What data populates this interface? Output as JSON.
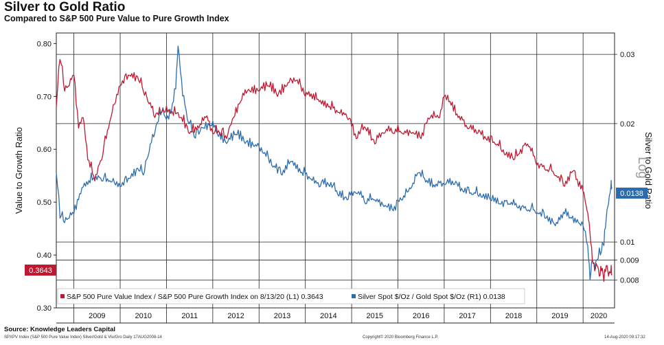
{
  "header": {
    "title": "Silver to Gold Ratio",
    "subtitle": "Compared to S&P 500 Pure Value to Pure Growth Index"
  },
  "footer": {
    "source": "Source: Knowledge Leaders Capital",
    "ticker_info": "SPXPV Index (S&P 500 Pure Value Index) Silver/Gold & Vlu/Gro Daily 17AUG2008-14",
    "copyright": "Copyright© 2020 Bloomberg Finance L.P.",
    "timestamp": "14-Aug-2020 09:17:32"
  },
  "colors": {
    "value_series": "#c0182f",
    "silver_series": "#2b6cae",
    "grid": "#222222"
  },
  "chart_data": {
    "type": "line",
    "title": "Silver to Gold Ratio",
    "subtitle": "Compared to S&P 500 Pure Value to Pure Growth Index",
    "x_years": [
      "2009",
      "2010",
      "2011",
      "2012",
      "2013",
      "2014",
      "2015",
      "2016",
      "2017",
      "2018",
      "2019",
      "2020"
    ],
    "left_axis": {
      "label": "Value to Growth Ratio",
      "ylim": [
        0.3,
        0.82
      ],
      "ticks": [
        "0.80",
        "0.70",
        "0.60",
        "0.50",
        "0.40",
        "0.30"
      ]
    },
    "right_axis": {
      "label": "Silver to Gold Ratio",
      "scale_label": "Log",
      "ylim": [
        0.0068,
        0.034
      ],
      "ticks": [
        "0.03",
        "0.02",
        "0.01",
        "0.009",
        "0.008"
      ]
    },
    "legend_position": "bottom",
    "series": [
      {
        "name": "S&P 500 Pure Value Index / S&P 500 Pure Growth Index on 8/13/20 (L1) 0.3643",
        "axis": "left",
        "last_value": "0.3643",
        "t": [
          2008.62,
          2008.7,
          2008.8,
          2008.9,
          2009.0,
          2009.1,
          2009.2,
          2009.3,
          2009.45,
          2009.6,
          2009.8,
          2010.0,
          2010.2,
          2010.4,
          2010.5,
          2010.6,
          2010.75,
          2010.9,
          2011.1,
          2011.3,
          2011.5,
          2011.7,
          2011.85,
          2012.0,
          2012.15,
          2012.3,
          2012.45,
          2012.6,
          2012.8,
          2013.0,
          2013.2,
          2013.4,
          2013.6,
          2013.8,
          2014.0,
          2014.1,
          2014.3,
          2014.5,
          2014.7,
          2014.9,
          2015.1,
          2015.3,
          2015.5,
          2015.7,
          2015.9,
          2016.1,
          2016.3,
          2016.5,
          2016.7,
          2016.9,
          2017.0,
          2017.1,
          2017.3,
          2017.5,
          2017.7,
          2017.9,
          2018.1,
          2018.3,
          2018.5,
          2018.6,
          2018.8,
          2019.0,
          2019.2,
          2019.4,
          2019.6,
          2019.8,
          2019.9,
          2020.0,
          2020.05,
          2020.1,
          2020.15,
          2020.2,
          2020.25,
          2020.3,
          2020.35,
          2020.4,
          2020.45,
          2020.5,
          2020.55,
          2020.6,
          2020.62
        ],
        "values": [
          0.68,
          0.77,
          0.71,
          0.72,
          0.74,
          0.64,
          0.66,
          0.58,
          0.54,
          0.58,
          0.66,
          0.72,
          0.74,
          0.73,
          0.71,
          0.69,
          0.66,
          0.67,
          0.67,
          0.66,
          0.63,
          0.64,
          0.66,
          0.63,
          0.63,
          0.62,
          0.66,
          0.69,
          0.71,
          0.71,
          0.72,
          0.7,
          0.72,
          0.73,
          0.7,
          0.7,
          0.69,
          0.68,
          0.67,
          0.66,
          0.62,
          0.64,
          0.61,
          0.63,
          0.63,
          0.63,
          0.63,
          0.62,
          0.66,
          0.66,
          0.7,
          0.69,
          0.66,
          0.64,
          0.63,
          0.62,
          0.61,
          0.59,
          0.58,
          0.59,
          0.61,
          0.57,
          0.56,
          0.55,
          0.53,
          0.56,
          0.53,
          0.52,
          0.5,
          0.48,
          0.44,
          0.39,
          0.37,
          0.38,
          0.36,
          0.37,
          0.35,
          0.38,
          0.36,
          0.37,
          0.3643
        ]
      },
      {
        "name": "Silver Spot $/Oz / Gold Spot $/Oz (R1) 0.0138",
        "axis": "right",
        "last_value": "0.0138",
        "t": [
          2008.62,
          2008.7,
          2008.8,
          2008.9,
          2009.0,
          2009.1,
          2009.2,
          2009.3,
          2009.45,
          2009.6,
          2009.8,
          2010.0,
          2010.2,
          2010.4,
          2010.5,
          2010.6,
          2010.75,
          2010.9,
          2011.0,
          2011.1,
          2011.2,
          2011.25,
          2011.35,
          2011.45,
          2011.6,
          2011.7,
          2011.8,
          2011.95,
          2012.1,
          2012.3,
          2012.5,
          2012.7,
          2012.9,
          2013.1,
          2013.3,
          2013.5,
          2013.7,
          2013.9,
          2014.1,
          2014.3,
          2014.5,
          2014.7,
          2014.9,
          2015.1,
          2015.3,
          2015.5,
          2015.7,
          2015.9,
          2016.1,
          2016.3,
          2016.45,
          2016.6,
          2016.8,
          2017.0,
          2017.2,
          2017.4,
          2017.6,
          2017.8,
          2018.0,
          2018.2,
          2018.4,
          2018.6,
          2018.8,
          2019.0,
          2019.2,
          2019.4,
          2019.6,
          2019.7,
          2019.9,
          2020.0,
          2020.1,
          2020.15,
          2020.2,
          2020.25,
          2020.3,
          2020.4,
          2020.45,
          2020.5,
          2020.55,
          2020.6,
          2020.62
        ],
        "values": [
          0.015,
          0.0115,
          0.0112,
          0.0115,
          0.0118,
          0.0128,
          0.0138,
          0.014,
          0.0145,
          0.0143,
          0.0142,
          0.0138,
          0.0145,
          0.0152,
          0.0148,
          0.0165,
          0.019,
          0.0215,
          0.0205,
          0.0212,
          0.0245,
          0.0315,
          0.0235,
          0.0205,
          0.0185,
          0.0188,
          0.0195,
          0.0198,
          0.0188,
          0.0178,
          0.0188,
          0.0178,
          0.0175,
          0.0168,
          0.0155,
          0.0148,
          0.016,
          0.015,
          0.0145,
          0.0138,
          0.014,
          0.0132,
          0.0128,
          0.0133,
          0.0125,
          0.0128,
          0.0123,
          0.012,
          0.0128,
          0.0138,
          0.015,
          0.0142,
          0.0138,
          0.014,
          0.014,
          0.0135,
          0.0132,
          0.013,
          0.0128,
          0.0125,
          0.0125,
          0.0122,
          0.012,
          0.0118,
          0.0115,
          0.011,
          0.0118,
          0.0115,
          0.0112,
          0.011,
          0.0098,
          0.008,
          0.009,
          0.0085,
          0.009,
          0.0095,
          0.0098,
          0.0115,
          0.0125,
          0.0138,
          0.0138
        ]
      }
    ]
  }
}
